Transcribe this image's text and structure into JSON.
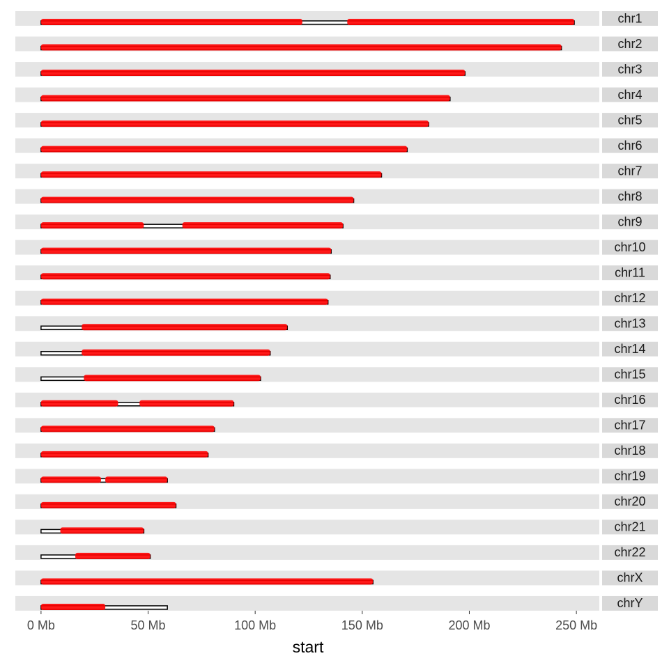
{
  "chart_data": {
    "type": "karyogram",
    "x_label": "start",
    "xlim": [
      -12,
      260.7
    ],
    "xticks": [
      {
        "value": 0,
        "label": "0 Mb"
      },
      {
        "value": 50,
        "label": "50 Mb"
      },
      {
        "value": 100,
        "label": "100 Mb"
      },
      {
        "value": 150,
        "label": "150 Mb"
      },
      {
        "value": 200,
        "label": "200 Mb"
      },
      {
        "value": 250,
        "label": "250 Mb"
      }
    ],
    "feature_color": "#ff0000",
    "bar_color": "#000000",
    "series": [
      {
        "name": "chr1",
        "length": 249,
        "regions": [
          [
            0,
            122
          ],
          [
            143,
            249
          ]
        ]
      },
      {
        "name": "chr2",
        "length": 243,
        "regions": [
          [
            0,
            243
          ]
        ]
      },
      {
        "name": "chr3",
        "length": 198,
        "regions": [
          [
            0,
            198
          ]
        ]
      },
      {
        "name": "chr4",
        "length": 191,
        "regions": [
          [
            0,
            191
          ]
        ]
      },
      {
        "name": "chr5",
        "length": 181,
        "regions": [
          [
            0,
            181
          ]
        ]
      },
      {
        "name": "chr6",
        "length": 171,
        "regions": [
          [
            0,
            171
          ]
        ]
      },
      {
        "name": "chr7",
        "length": 159,
        "regions": [
          [
            0,
            159
          ]
        ]
      },
      {
        "name": "chr8",
        "length": 146,
        "regions": [
          [
            0,
            146
          ]
        ]
      },
      {
        "name": "chr9",
        "length": 141,
        "regions": [
          [
            0,
            48
          ],
          [
            66,
            141
          ]
        ]
      },
      {
        "name": "chr10",
        "length": 135.5,
        "regions": [
          [
            0,
            135.5
          ]
        ]
      },
      {
        "name": "chr11",
        "length": 135,
        "regions": [
          [
            0,
            135
          ]
        ]
      },
      {
        "name": "chr12",
        "length": 134,
        "regions": [
          [
            0,
            134
          ]
        ]
      },
      {
        "name": "chr13",
        "length": 115,
        "regions": [
          [
            19,
            115
          ]
        ]
      },
      {
        "name": "chr14",
        "length": 107,
        "regions": [
          [
            19,
            107
          ]
        ]
      },
      {
        "name": "chr15",
        "length": 102.5,
        "regions": [
          [
            20,
            102.5
          ]
        ]
      },
      {
        "name": "chr16",
        "length": 90,
        "regions": [
          [
            0,
            36
          ],
          [
            46,
            90
          ]
        ]
      },
      {
        "name": "chr17",
        "length": 81,
        "regions": [
          [
            0,
            81
          ]
        ]
      },
      {
        "name": "chr18",
        "length": 78,
        "regions": [
          [
            0,
            78
          ]
        ]
      },
      {
        "name": "chr19",
        "length": 59,
        "regions": [
          [
            0,
            28
          ],
          [
            30,
            59
          ]
        ]
      },
      {
        "name": "chr20",
        "length": 63,
        "regions": [
          [
            0,
            63
          ]
        ]
      },
      {
        "name": "chr21",
        "length": 48,
        "regions": [
          [
            9,
            48
          ]
        ]
      },
      {
        "name": "chr22",
        "length": 51,
        "regions": [
          [
            16,
            51
          ]
        ]
      },
      {
        "name": "chrX",
        "length": 155,
        "regions": [
          [
            0,
            155
          ]
        ]
      },
      {
        "name": "chrY",
        "length": 59,
        "regions": [
          [
            0,
            30
          ]
        ]
      }
    ]
  }
}
